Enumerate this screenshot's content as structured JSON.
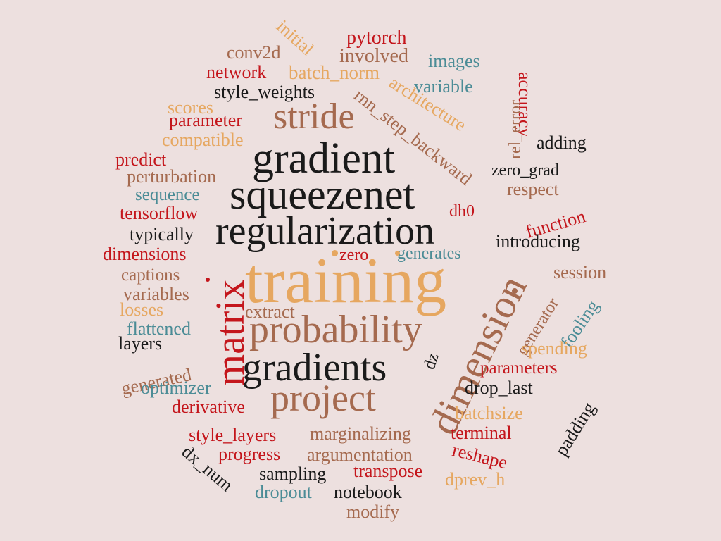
{
  "palette": {
    "background": "#ede0df",
    "red": "#c4161c",
    "brown": "#a56a4f",
    "orange": "#e6a760",
    "teal": "#4b8c96",
    "black": "#1a1a1a"
  },
  "words": [
    {
      "text": "training",
      "color": "orange"
    },
    {
      "text": "gradient",
      "color": "black"
    },
    {
      "text": "squeezenet",
      "color": "black"
    },
    {
      "text": "regularization",
      "color": "black"
    },
    {
      "text": "probability",
      "color": "brown"
    },
    {
      "text": "gradients",
      "color": "black"
    },
    {
      "text": "project",
      "color": "brown"
    },
    {
      "text": "matrix",
      "color": "red"
    },
    {
      "text": "dimension",
      "color": "brown"
    },
    {
      "text": "stride",
      "color": "brown"
    },
    {
      "text": "pytorch",
      "color": "red"
    },
    {
      "text": "initial",
      "color": "orange"
    },
    {
      "text": "conv2d",
      "color": "brown"
    },
    {
      "text": "involved",
      "color": "brown"
    },
    {
      "text": "images",
      "color": "teal"
    },
    {
      "text": "network",
      "color": "red"
    },
    {
      "text": "batch_norm",
      "color": "orange"
    },
    {
      "text": "variable",
      "color": "teal"
    },
    {
      "text": "accuracy",
      "color": "red"
    },
    {
      "text": "style_weights",
      "color": "black"
    },
    {
      "text": "rnn_step_backward",
      "color": "brown"
    },
    {
      "text": "architecture",
      "color": "orange"
    },
    {
      "text": "rel_error",
      "color": "brown"
    },
    {
      "text": "scores",
      "color": "orange"
    },
    {
      "text": "parameter",
      "color": "red"
    },
    {
      "text": "compatible",
      "color": "orange"
    },
    {
      "text": "adding",
      "color": "black"
    },
    {
      "text": "predict",
      "color": "red"
    },
    {
      "text": "zero_grad",
      "color": "black"
    },
    {
      "text": "perturbation",
      "color": "brown"
    },
    {
      "text": "respect",
      "color": "brown"
    },
    {
      "text": "sequence",
      "color": "teal"
    },
    {
      "text": "tensorflow",
      "color": "red"
    },
    {
      "text": "dh0",
      "color": "red"
    },
    {
      "text": "function",
      "color": "red"
    },
    {
      "text": "typically",
      "color": "black"
    },
    {
      "text": "introducing",
      "color": "black"
    },
    {
      "text": "dimensions",
      "color": "red"
    },
    {
      "text": "zero",
      "color": "red"
    },
    {
      "text": "generates",
      "color": "teal"
    },
    {
      "text": "captions",
      "color": "brown"
    },
    {
      "text": "session",
      "color": "brown"
    },
    {
      "text": "variables",
      "color": "brown"
    },
    {
      "text": "fooling",
      "color": "teal"
    },
    {
      "text": "losses",
      "color": "orange"
    },
    {
      "text": "extract",
      "color": "brown"
    },
    {
      "text": "generator",
      "color": "brown"
    },
    {
      "text": "flattened",
      "color": "teal"
    },
    {
      "text": "layers",
      "color": "black"
    },
    {
      "text": "spending",
      "color": "orange"
    },
    {
      "text": "generated",
      "color": "brown"
    },
    {
      "text": "dz",
      "color": "black"
    },
    {
      "text": "parameters",
      "color": "red"
    },
    {
      "text": "optimizer",
      "color": "teal"
    },
    {
      "text": "drop_last",
      "color": "black"
    },
    {
      "text": "padding",
      "color": "black"
    },
    {
      "text": "derivative",
      "color": "red"
    },
    {
      "text": "batchsize",
      "color": "orange"
    },
    {
      "text": "style_layers",
      "color": "red"
    },
    {
      "text": "marginalizing",
      "color": "brown"
    },
    {
      "text": "terminal",
      "color": "red"
    },
    {
      "text": "progress",
      "color": "red"
    },
    {
      "text": "argumentation",
      "color": "brown"
    },
    {
      "text": "reshape",
      "color": "red"
    },
    {
      "text": "dx_num",
      "color": "black"
    },
    {
      "text": "sampling",
      "color": "black"
    },
    {
      "text": "transpose",
      "color": "red"
    },
    {
      "text": "dprev_h",
      "color": "orange"
    },
    {
      "text": "dropout",
      "color": "teal"
    },
    {
      "text": "notebook",
      "color": "black"
    },
    {
      "text": "modify",
      "color": "brown"
    }
  ]
}
